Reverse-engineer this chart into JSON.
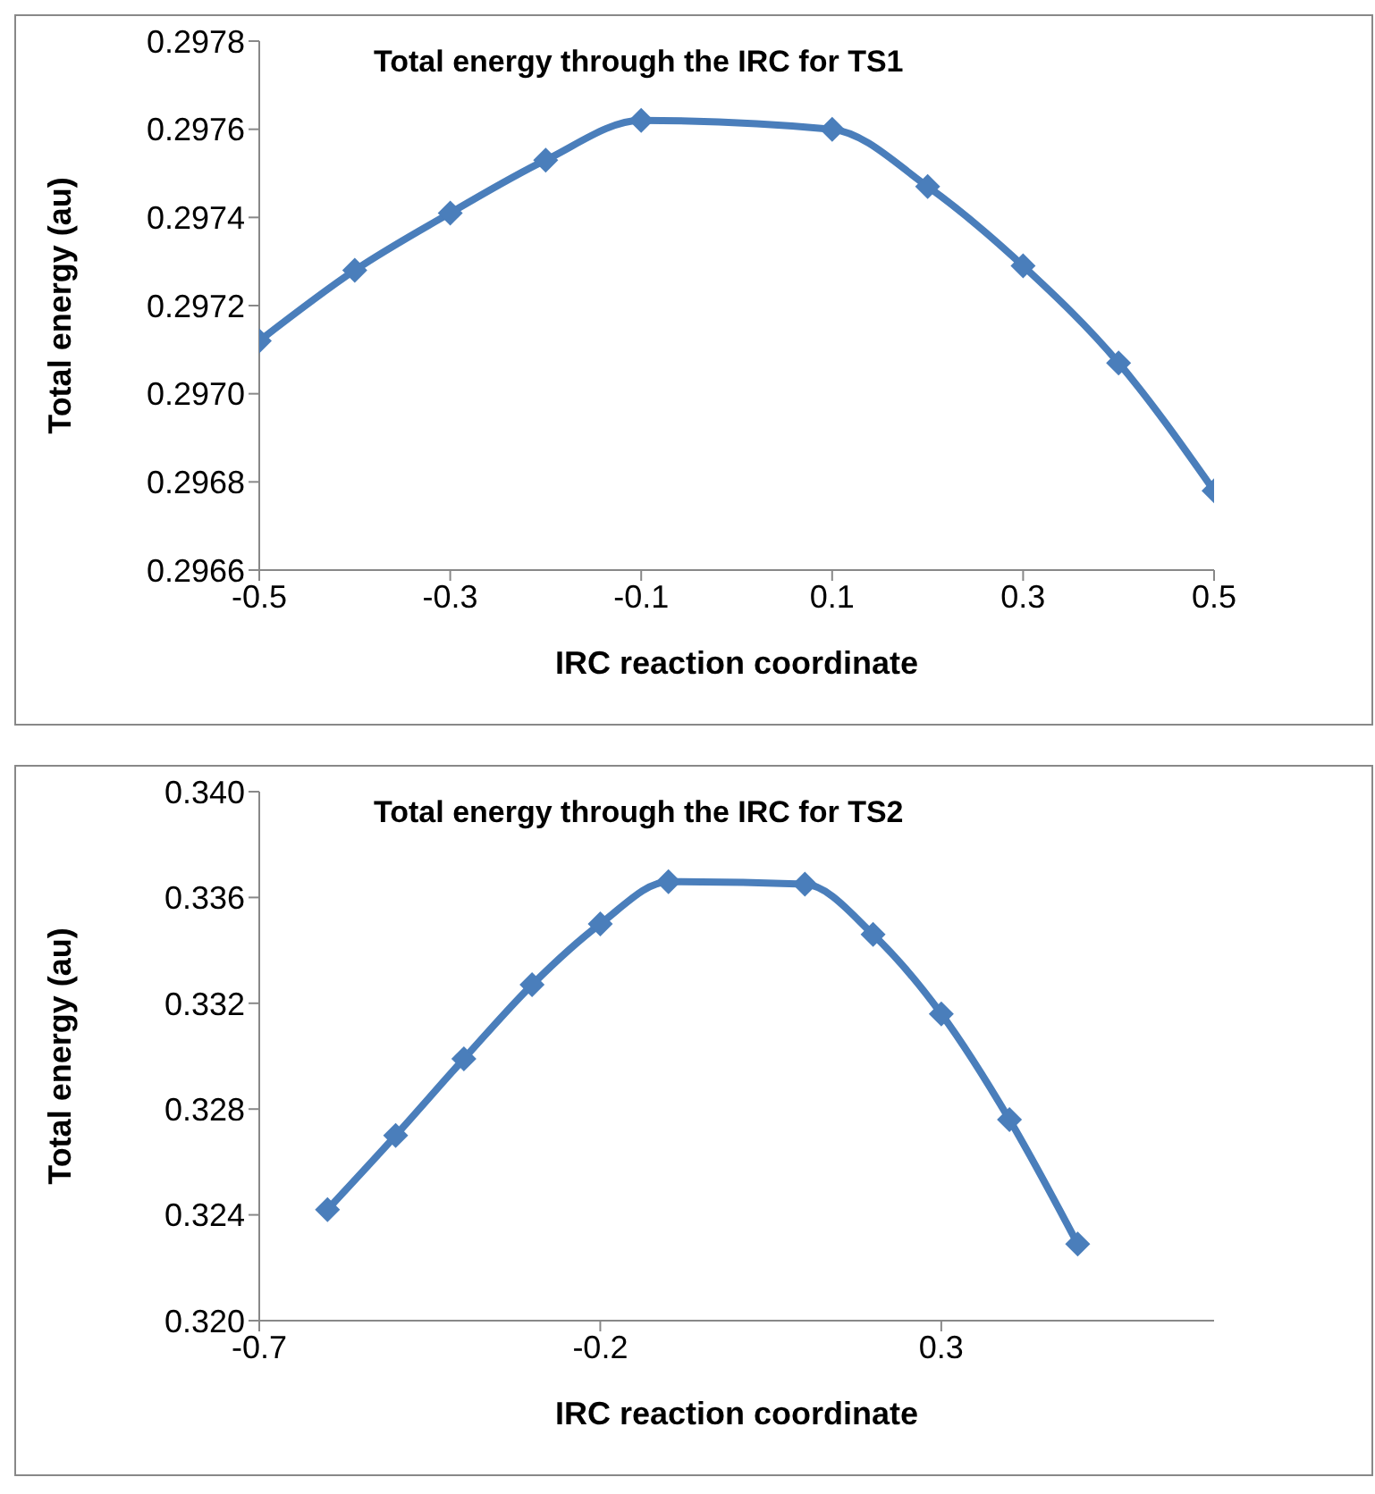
{
  "chart_data": [
    {
      "type": "line",
      "title": "Total energy through the IRC for TS1",
      "xlabel": "IRC reaction coordinate",
      "ylabel": "Total energy (au)",
      "marker": "diamond",
      "x": [
        -0.5,
        -0.4,
        -0.3,
        -0.2,
        -0.1,
        0.1,
        0.2,
        0.3,
        0.4,
        0.5
      ],
      "series": [
        {
          "color": "#4a7ebb",
          "values": [
            0.29712,
            0.29728,
            0.29741,
            0.29753,
            0.29762,
            0.2976,
            0.29747,
            0.29729,
            0.29707,
            0.29678
          ]
        }
      ],
      "xlim": [
        -0.5,
        0.5
      ],
      "xticks": [
        -0.5,
        -0.3,
        -0.1,
        0.1,
        0.3,
        0.5
      ],
      "ylim": [
        0.2966,
        0.2978
      ],
      "yticks": [
        0.2966,
        0.2968,
        {
          "value": 0.297,
          "label": "0.2970"
        },
        0.2972,
        0.2974,
        0.2976,
        0.2978
      ]
    },
    {
      "type": "line",
      "title": "Total energy through the IRC for TS2",
      "xlabel": "IRC reaction coordinate",
      "ylabel": "Total energy (au)",
      "marker": "diamond",
      "x": [
        -0.6,
        -0.5,
        -0.4,
        -0.3,
        -0.2,
        -0.1,
        0.1,
        0.2,
        0.3,
        0.4,
        0.5
      ],
      "series": [
        {
          "color": "#4a7ebb",
          "values": [
            0.3242,
            0.327,
            0.3299,
            0.3327,
            0.335,
            0.3366,
            0.3365,
            0.3346,
            0.3316,
            0.3276,
            0.3229
          ]
        }
      ],
      "xlim": [
        -0.7,
        0.7
      ],
      "xticks": [
        -0.7,
        -0.2,
        0.3
      ],
      "ylim": [
        0.32,
        0.34
      ],
      "yticks": [
        {
          "value": 0.32,
          "label": "0.320"
        },
        0.324,
        0.328,
        0.332,
        0.336,
        {
          "value": 0.34,
          "label": "0.340"
        }
      ]
    }
  ]
}
